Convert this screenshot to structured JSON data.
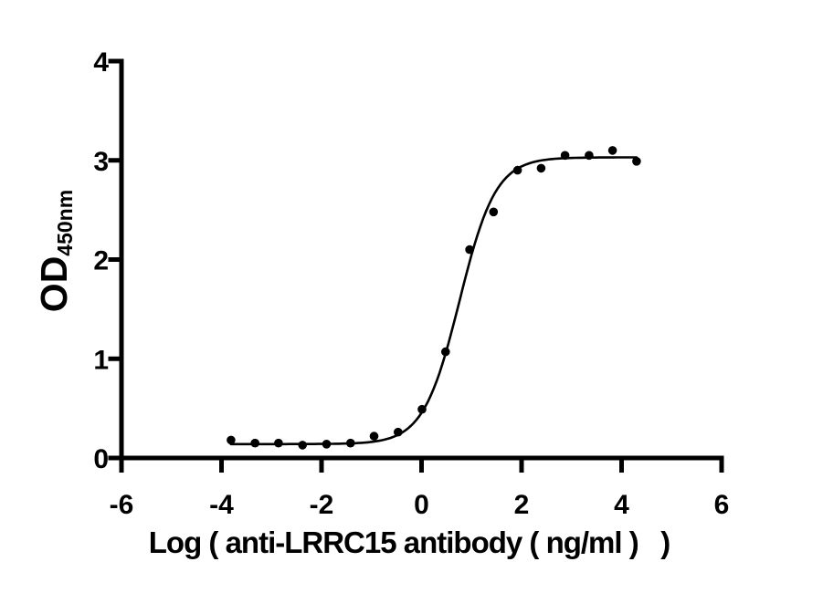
{
  "figure": {
    "background_color": "#ffffff",
    "axis_color": "#000000",
    "y_axis": {
      "title_main": "OD",
      "title_sub": "450nm",
      "tick_labels": [
        "0",
        "1",
        "2",
        "3",
        "4"
      ],
      "range": [
        0,
        4
      ]
    },
    "x_axis": {
      "title": "Log ( anti-LRRC15 antibody ( ng/ml )   )",
      "tick_labels": [
        "-6",
        "-4",
        "-2",
        "0",
        "2",
        "4",
        "6"
      ],
      "range": [
        -6,
        6
      ]
    }
  },
  "chart_data": {
    "type": "scatter",
    "title": "",
    "xlabel": "Log ( anti-LRRC15 antibody ( ng/ml )   )",
    "ylabel": "OD450nm",
    "xlim": [
      -6,
      6
    ],
    "ylim": [
      0,
      4
    ],
    "x_ticks": [
      -6,
      -4,
      -2,
      0,
      2,
      4,
      6
    ],
    "y_ticks": [
      0,
      1,
      2,
      3,
      4
    ],
    "grid": false,
    "legend_position": "none",
    "marker_color": "#000000",
    "line_color": "#000000",
    "series": [
      {
        "name": "anti-LRRC15 antibody",
        "marker": "filled-circle",
        "points": [
          [
            -3.81,
            0.18
          ],
          [
            -3.33,
            0.15
          ],
          [
            -2.86,
            0.15
          ],
          [
            -2.38,
            0.13
          ],
          [
            -1.9,
            0.14
          ],
          [
            -1.42,
            0.15
          ],
          [
            -0.95,
            0.22
          ],
          [
            -0.47,
            0.26
          ],
          [
            0.01,
            0.49
          ],
          [
            0.48,
            1.07
          ],
          [
            0.96,
            2.1
          ],
          [
            1.44,
            2.48
          ],
          [
            1.92,
            2.9
          ],
          [
            2.39,
            2.92
          ],
          [
            2.87,
            3.05
          ],
          [
            3.35,
            3.05
          ],
          [
            3.82,
            3.1
          ],
          [
            4.3,
            2.99
          ]
        ]
      }
    ],
    "fit_curve": {
      "model": "4PL",
      "bottom": 0.14,
      "top": 3.03,
      "log_ec50": 0.76,
      "hill_slope": 1.2,
      "x_start": -3.81,
      "x_end": 4.3
    }
  }
}
